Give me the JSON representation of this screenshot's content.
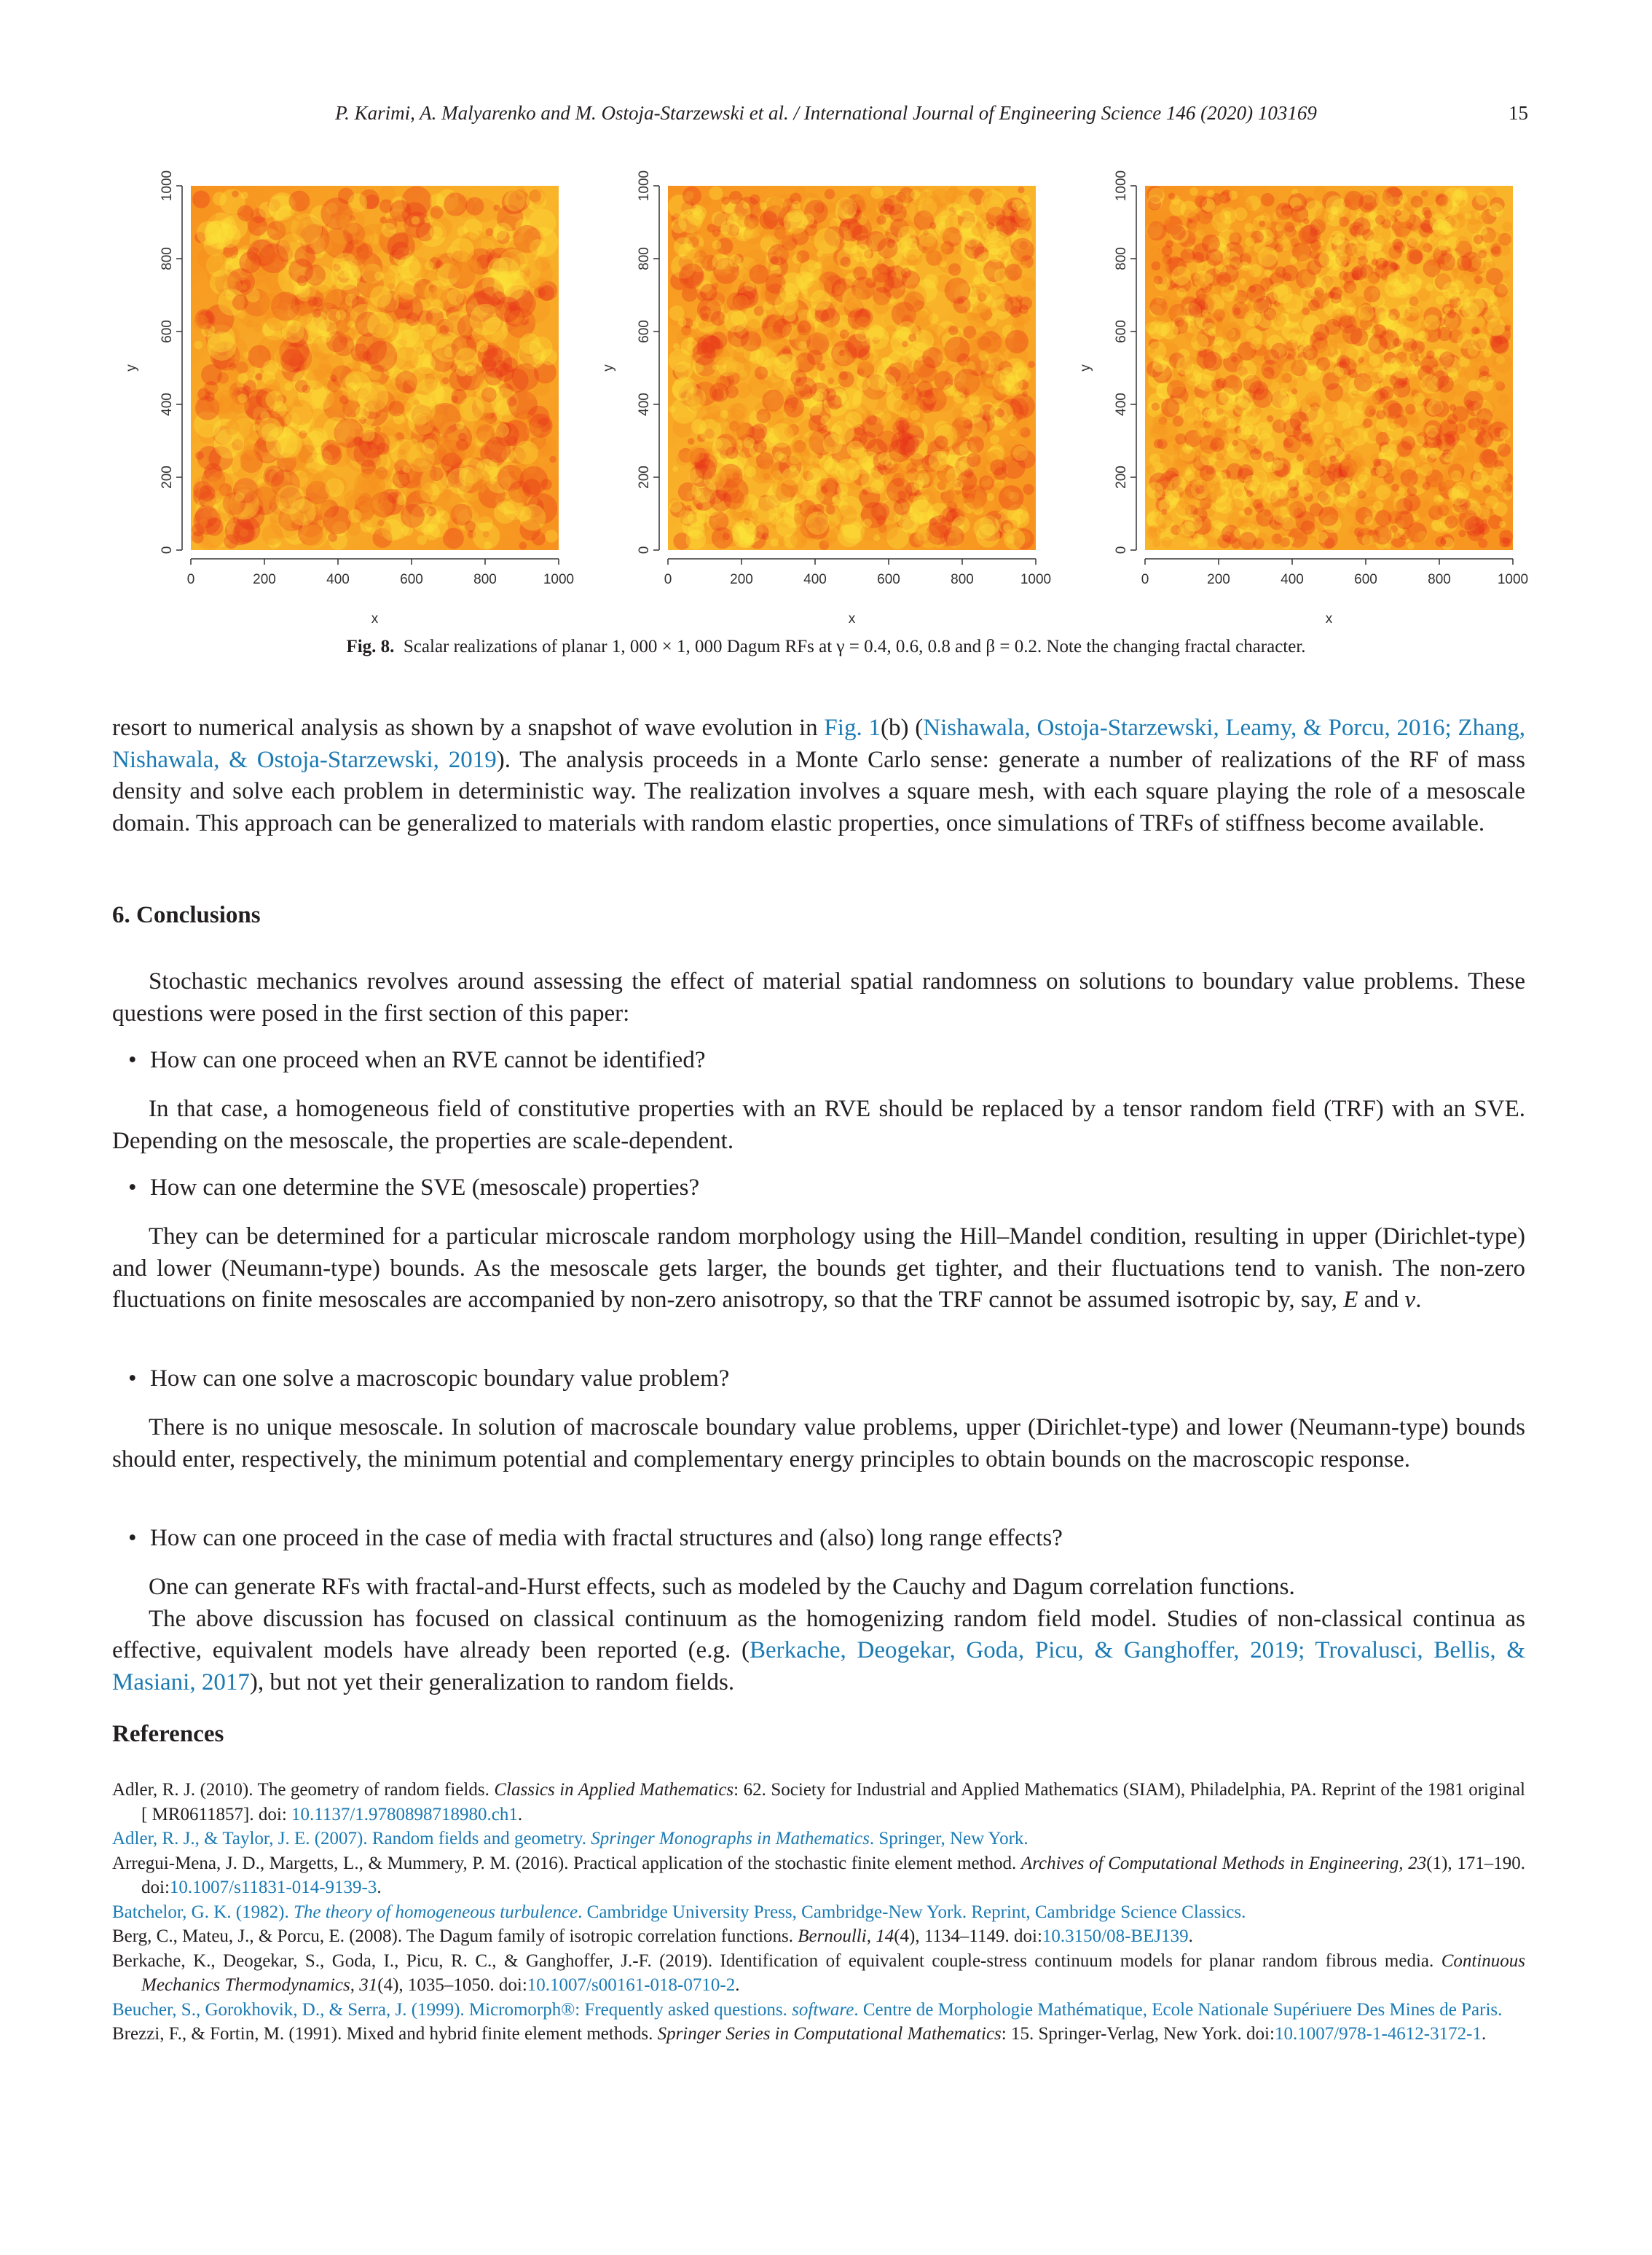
{
  "header": {
    "running_title": "P. Karimi, A. Malyarenko and M. Ostoja-Starzewski et al. / International Journal of Engineering Science 146 (2020) 103169",
    "page_number": "15"
  },
  "figure": {
    "plots": [
      {
        "xlabel": "x",
        "ylabel": "y",
        "xticks": [
          "0",
          "200",
          "400",
          "600",
          "800",
          "1000"
        ],
        "yticks": [
          "0",
          "200",
          "400",
          "600",
          "800",
          "1000"
        ]
      },
      {
        "xlabel": "x",
        "ylabel": "y",
        "xticks": [
          "0",
          "200",
          "400",
          "600",
          "800",
          "1000"
        ],
        "yticks": [
          "0",
          "200",
          "400",
          "600",
          "800",
          "1000"
        ]
      },
      {
        "xlabel": "x",
        "ylabel": "y",
        "xticks": [
          "0",
          "200",
          "400",
          "600",
          "800",
          "1000"
        ],
        "yticks": [
          "0",
          "200",
          "400",
          "600",
          "800",
          "1000"
        ]
      }
    ],
    "colors": {
      "low": "#e8301a",
      "mid": "#f7911f",
      "high": "#fde63a"
    },
    "caption_label": "Fig. 8.",
    "caption_text": "Scalar realizations of planar 1, 000 × 1, 000 Dagum RFs at γ = 0.4, 0.6, 0.8 and β = 0.2. Note the changing fractal character."
  },
  "para1": {
    "pre": "resort to numerical analysis as shown by a snapshot of wave evolution in ",
    "link1": "Fig. 1",
    "mid1": "(b) (",
    "link2": "Nishawala, Ostoja-Starzewski, Leamy, & Porcu, 2016; Zhang, Nishawala, & Ostoja-Starzewski, 2019",
    "post": "). The analysis proceeds in a Monte Carlo sense: generate a number of realizations of the RF of mass density and solve each problem in deterministic way. The realization involves a square mesh, with each square playing the role of a mesoscale domain. This approach can be generalized to materials with random elastic properties, once simulations of TRFs of stiffness become available."
  },
  "section": {
    "heading": "6. Conclusions",
    "intro": "Stochastic mechanics revolves around assessing the effect of material spatial randomness on solutions to boundary value problems. These questions were posed in the first section of this paper:",
    "q1": "How can one proceed when an RVE cannot be identified?",
    "a1": "In that case, a homogeneous field of constitutive properties with an RVE should be replaced by a tensor random field (TRF) with an SVE. Depending on the mesoscale, the properties are scale-dependent.",
    "q2": "How can one determine the SVE (mesoscale) properties?",
    "a2_pre": "They can be determined for a particular microscale random morphology using the Hill–Mandel condition, resulting in upper (Dirichlet-type) and lower (Neumann-type) bounds. As the mesoscale gets larger, the bounds get tighter, and their fluctuations tend to vanish. The non-zero fluctuations on finite mesoscales are accompanied by non-zero anisotropy, so that the TRF cannot be assumed isotropic by, say, ",
    "a2_E": "E",
    "a2_and": " and ",
    "a2_nu": "ν",
    "a2_end": ".",
    "q3": "How can one solve a macroscopic boundary value problem?",
    "a3": "There is no unique mesoscale. In solution of macroscale boundary value problems, upper (Dirichlet-type) and lower (Neumann-type) bounds should enter, respectively, the minimum potential and complementary energy principles to obtain bounds on the macroscopic response.",
    "q4": "How can one proceed in the case of media with fractal structures and (also) long range effects?",
    "a4": "One can generate RFs with fractal-and-Hurst effects, such as modeled by the Cauchy and Dagum correlation functions.",
    "a5_pre": "The above discussion has focused on classical continuum as the homogenizing random field model. Studies of non-classical continua as effective, equivalent models have already been reported (e.g. (",
    "a5_link": "Berkache, Deogekar, Goda, Picu, & Ganghoffer, 2019; Trovalusci, Bellis, & Masiani, 2017",
    "a5_post": "), but not yet their generalization to random fields."
  },
  "references": {
    "heading": "References",
    "r1_pre": "Adler, R. J. (2010). The geometry of random fields. ",
    "r1_it": "Classics in Applied Mathematics",
    "r1_post": ": 62. Society for Industrial and Applied Mathematics (SIAM), Philadelphia, PA. Reprint of the 1981 original [ MR0611857]. doi: ",
    "r1_doi": "10.1137/1.9780898718980.ch1",
    "r1_end": ".",
    "r2_pre": "Adler, R. J., & Taylor, J. E. (2007). Random fields and geometry. ",
    "r2_it": "Springer Monographs in Mathematics",
    "r2_post": ". Springer, New York.",
    "r3_pre": "Arregui-Mena, J. D., Margetts, L., & Mummery, P. M. (2016). Practical application of the stochastic finite element method. ",
    "r3_it": "Archives of Computational Methods in Engineering, 23",
    "r3_post": "(1), 171–190. doi:",
    "r3_doi": "10.1007/s11831-014-9139-3",
    "r3_end": ".",
    "r4_pre": "Batchelor, G. K. (1982). ",
    "r4_it": "The theory of homogeneous turbulence",
    "r4_post": ". Cambridge University Press, Cambridge-New York. Reprint, Cambridge Science Classics.",
    "r5_pre": "Berg, C., Mateu, J., & Porcu, E. (2008). The Dagum family of isotropic correlation functions. ",
    "r5_it": "Bernoulli, 14",
    "r5_post": "(4), 1134–1149. doi:",
    "r5_doi": "10.3150/08-BEJ139",
    "r5_end": ".",
    "r6_pre": "Berkache, K., Deogekar, S., Goda, I., Picu, R. C., & Ganghoffer, J.-F. (2019). Identification of equivalent couple-stress continuum models for planar random fibrous media. ",
    "r6_it": "Continuous Mechanics Thermodynamics, 31",
    "r6_post": "(4), 1035–1050. doi:",
    "r6_doi": "10.1007/s00161-018-0710-2",
    "r6_end": ".",
    "r7_pre": "Beucher, S., Gorokhovik, D., & Serra, J. (1999). Micromorph®: Frequently asked questions. ",
    "r7_it": "software",
    "r7_post": ". Centre de Morphologie Mathématique, Ecole Nationale Supériuere Des Mines de Paris.",
    "r8_pre": "Brezzi, F., & Fortin, M. (1991). Mixed and hybrid finite element methods. ",
    "r8_it": "Springer Series in Computational Mathematics",
    "r8_post": ": 15. Springer-Verlag, New York. doi:",
    "r8_doi": "10.1007/978-1-4612-3172-1",
    "r8_end": "."
  }
}
